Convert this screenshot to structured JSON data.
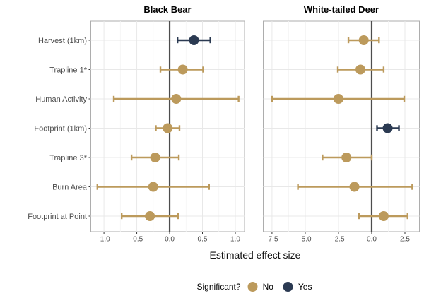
{
  "figure": {
    "background": "#FFFFFF"
  },
  "chart_data": {
    "type": "scatter",
    "subtype": "forest-plot-pointrange",
    "xlabel": "Estimated effect size",
    "grid": "on",
    "reference_line_x": 0,
    "categories": [
      "Harvest (1km)",
      "Trapline 1*",
      "Human Activity",
      "Footprint (1km)",
      "Trapline 3*",
      "Burn Area",
      "Footprint at Point"
    ],
    "legend": {
      "title": "Significant?",
      "position": "bottom",
      "items": [
        {
          "label": "No",
          "color": "#BC9A5C"
        },
        {
          "label": "Yes",
          "color": "#2B3A52"
        }
      ]
    },
    "colors": {
      "zero_line": "#4D4D4D",
      "grid_major": "#E8E8E8",
      "grid_minor": "#F4F4F4",
      "panel_border": "#ADADAD",
      "axis_text": "#4D4D4D",
      "tick_mark": "#333333"
    },
    "facets": [
      {
        "title": "Black Bear",
        "xlim": [
          -1.2,
          1.14
        ],
        "tick_values": [
          -1.0,
          -0.5,
          0.0,
          0.5,
          1.0
        ],
        "tick_labels": [
          "-1.0",
          "-0.5",
          "0.0",
          "0.5",
          "1.0"
        ],
        "points": [
          {
            "category": "Harvest (1km)",
            "estimate": 0.37,
            "lower": 0.12,
            "upper": 0.62,
            "significant": "Yes"
          },
          {
            "category": "Trapline 1*",
            "estimate": 0.2,
            "lower": -0.14,
            "upper": 0.51,
            "significant": "No"
          },
          {
            "category": "Human Activity",
            "estimate": 0.1,
            "lower": -0.85,
            "upper": 1.05,
            "significant": "No"
          },
          {
            "category": "Footprint (1km)",
            "estimate": -0.03,
            "lower": -0.21,
            "upper": 0.15,
            "significant": "No"
          },
          {
            "category": "Trapline 3*",
            "estimate": -0.22,
            "lower": -0.58,
            "upper": 0.14,
            "significant": "No"
          },
          {
            "category": "Burn Area",
            "estimate": -0.25,
            "lower": -1.1,
            "upper": 0.6,
            "significant": "No"
          },
          {
            "category": "Footprint at Point",
            "estimate": -0.3,
            "lower": -0.73,
            "upper": 0.13,
            "significant": "No"
          }
        ]
      },
      {
        "title": "White-tailed Deer",
        "xlim": [
          -8.16,
          3.59
        ],
        "tick_values": [
          -7.5,
          -5.0,
          -2.5,
          0.0,
          2.5
        ],
        "tick_labels": [
          "-7.5",
          "-5.0",
          "-2.5",
          "0.0",
          "2.5"
        ],
        "points": [
          {
            "category": "Harvest (1km)",
            "estimate": -0.6,
            "lower": -1.75,
            "upper": 0.55,
            "significant": "No"
          },
          {
            "category": "Trapline 1*",
            "estimate": -0.85,
            "lower": -2.55,
            "upper": 0.9,
            "significant": "No"
          },
          {
            "category": "Human Activity",
            "estimate": -2.5,
            "lower": -7.5,
            "upper": 2.45,
            "significant": "No"
          },
          {
            "category": "Footprint (1km)",
            "estimate": 1.2,
            "lower": 0.4,
            "upper": 2.05,
            "significant": "Yes"
          },
          {
            "category": "Trapline 3*",
            "estimate": -1.9,
            "lower": -3.7,
            "upper": 0.0,
            "significant": "No"
          },
          {
            "category": "Burn Area",
            "estimate": -1.3,
            "lower": -5.55,
            "upper": 3.05,
            "significant": "No"
          },
          {
            "category": "Footprint at Point",
            "estimate": 0.9,
            "lower": -0.95,
            "upper": 2.7,
            "significant": "No"
          }
        ]
      }
    ]
  }
}
